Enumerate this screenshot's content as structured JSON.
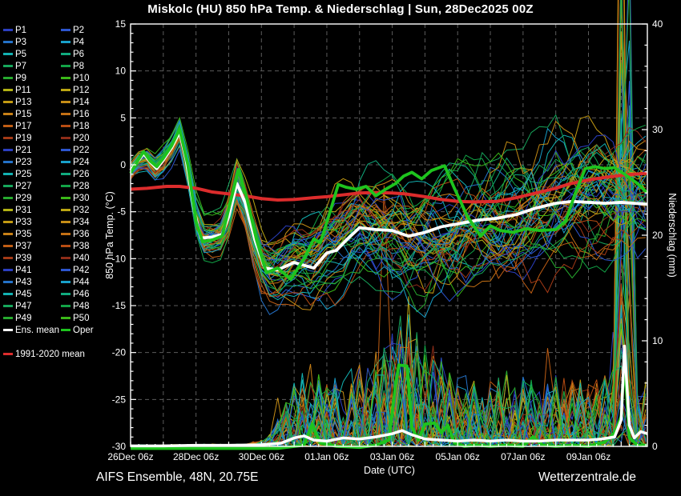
{
  "title": "Miskolc  (HU)  850 hPa Temp. & Niederschlag | Sun, 28Dec2025 00Z",
  "footer": {
    "left": "AIFS Ensemble, 48N, 20.75E",
    "right": "Wetterzentrale.de"
  },
  "legend": {
    "member_labels": [
      "P1",
      "P2",
      "P3",
      "P4",
      "P5",
      "P6",
      "P7",
      "P8",
      "P9",
      "P10",
      "P11",
      "P12",
      "P13",
      "P14",
      "P15",
      "P16",
      "P17",
      "P18",
      "P19",
      "P20",
      "P21",
      "P22",
      "P23",
      "P24",
      "P25",
      "P26",
      "P27",
      "P28",
      "P29",
      "P30",
      "P31",
      "P32",
      "P33",
      "P34",
      "P35",
      "P36",
      "P37",
      "P38",
      "P39",
      "P40",
      "P41",
      "P42",
      "P43",
      "P44",
      "P45",
      "P46",
      "P47",
      "P48",
      "P49",
      "P50"
    ],
    "member_palette": [
      "#2b3fc0",
      "#2c55cf",
      "#2472c9",
      "#18a0c9",
      "#12b2b2",
      "#10ab7e",
      "#16a75c",
      "#12a346",
      "#27aa2e",
      "#3ab818",
      "#b2b214",
      "#bba612",
      "#c39a12",
      "#c58d16",
      "#c88016",
      "#c47014",
      "#c05e14",
      "#b64c12",
      "#a43a16",
      "#8e2c18"
    ],
    "ens_mean": {
      "label": "Ens. mean",
      "color": "#ffffff"
    },
    "oper": {
      "label": "Oper",
      "color": "#1ec41e"
    },
    "climate": {
      "label": "1991-2020 mean",
      "color": "#dc2c2c"
    }
  },
  "chart_data": {
    "type": "line",
    "title": "Miskolc (HU) 850 hPa Temp. & Niederschlag, AIFS Ensemble run Sun 28Dec2025 00Z",
    "n_members": 50,
    "x_axis": {
      "label": "Date (UTC)",
      "start": "26Dec 06z",
      "span_days": 15.8,
      "tick_labels": [
        "26Dec 06z",
        "28Dec 06z",
        "30Dec 06z",
        "01Jan 06z",
        "03Jan 06z",
        "05Jan 06z",
        "07Jan 06z",
        "09Jan 06z"
      ],
      "tick_positions_days": [
        0,
        2,
        4,
        6,
        8,
        10,
        12,
        14
      ],
      "gridline_every_days": 1,
      "minor_tick_hours": 6
    },
    "y_left": {
      "label": "850 hPa Temp. (°C)",
      "min": -30,
      "max": 15,
      "major_ticks": [
        15,
        10,
        5,
        0,
        -5,
        -10,
        -15,
        -20,
        -25,
        -30
      ],
      "minor_step": 1,
      "grid_step": 5
    },
    "y_right": {
      "label": "Niederschlag (mm)",
      "min": 0,
      "max": 40,
      "major_ticks": [
        40,
        30,
        20,
        10,
        0
      ],
      "minor_step": 2
    },
    "series": {
      "ens_mean_temp": {
        "t": [
          0,
          0.25,
          0.4,
          0.6,
          0.8,
          1.0,
          1.25,
          1.5,
          1.7,
          1.95,
          2.15,
          2.5,
          2.8,
          3.0,
          3.25,
          3.5,
          3.8,
          4.1,
          4.5,
          5.0,
          5.6,
          6.0,
          6.3,
          6.6,
          7.0,
          7.5,
          8.0,
          8.5,
          9.0,
          9.5,
          10.0,
          10.6,
          11.2,
          11.8,
          12.4,
          13.0,
          13.5,
          14.0,
          14.5,
          15.0,
          15.4,
          15.8
        ],
        "v": [
          -0.6,
          0.5,
          1.2,
          0.3,
          -0.4,
          0.5,
          1.8,
          3.5,
          0.5,
          -5.0,
          -7.8,
          -7.7,
          -7.4,
          -5.5,
          -2.0,
          -4.0,
          -8.0,
          -11.0,
          -11.2,
          -10.4,
          -11.0,
          -9.4,
          -9.1,
          -8.0,
          -6.7,
          -6.9,
          -7.0,
          -7.6,
          -7.2,
          -6.6,
          -6.3,
          -5.9,
          -5.7,
          -5.3,
          -4.6,
          -4.1,
          -3.9,
          -4.0,
          -4.1,
          -4.0,
          -4.1,
          -4.2
        ]
      },
      "oper_temp": {
        "t": [
          0,
          0.25,
          0.4,
          0.6,
          0.8,
          1.0,
          1.25,
          1.5,
          1.75,
          2.0,
          2.2,
          2.5,
          2.8,
          3.05,
          3.3,
          3.55,
          3.85,
          4.15,
          4.5,
          4.9,
          5.3,
          5.6,
          5.8,
          6.1,
          6.35,
          6.6,
          6.9,
          7.2,
          7.5,
          7.8,
          8.1,
          8.35,
          8.6,
          8.9,
          9.2,
          9.6,
          9.9,
          10.3,
          10.7,
          11.0,
          11.3,
          11.7,
          12.1,
          12.5,
          13.0,
          13.3,
          13.6,
          13.9,
          14.2,
          14.5,
          14.8,
          15.1,
          15.5,
          15.8
        ],
        "v": [
          -0.9,
          0.6,
          1.4,
          0.4,
          -0.2,
          0.7,
          2.0,
          3.8,
          0.0,
          -6.0,
          -8.2,
          -8.0,
          -7.6,
          -4.0,
          -0.5,
          -3.5,
          -8.0,
          -11.5,
          -11.0,
          -12.2,
          -10.0,
          -7.9,
          -8.3,
          -5.0,
          -2.1,
          -2.4,
          -2.6,
          -2.3,
          -3.3,
          -2.6,
          -2.0,
          -1.2,
          -0.8,
          -1.5,
          -0.6,
          -0.1,
          -2.5,
          -5.5,
          -7.6,
          -6.5,
          -7.0,
          -7.2,
          -6.8,
          -7.0,
          -6.9,
          -6.0,
          -3.0,
          -0.4,
          -0.2,
          -0.4,
          -0.3,
          -1.0,
          -2.0,
          -3.0
        ]
      },
      "climate_mean_temp": {
        "t": [
          0,
          0.5,
          1.1,
          1.5,
          2.0,
          2.5,
          3.0,
          3.5,
          4.0,
          4.5,
          5.0,
          5.6,
          6.0,
          6.5,
          7.0,
          7.5,
          8.0,
          8.4,
          9.0,
          9.5,
          10.0,
          10.5,
          11.2,
          11.8,
          12.4,
          13.0,
          13.4,
          14.0,
          14.6,
          15.2,
          15.8
        ],
        "v": [
          -2.6,
          -2.5,
          -2.3,
          -2.3,
          -2.5,
          -2.9,
          -3.1,
          -3.3,
          -3.6,
          -3.75,
          -3.7,
          -3.5,
          -3.4,
          -3.2,
          -3.0,
          -2.95,
          -3.0,
          -3.1,
          -3.4,
          -3.7,
          -3.9,
          -3.95,
          -3.9,
          -3.5,
          -3.0,
          -2.5,
          -2.05,
          -1.6,
          -1.3,
          -1.05,
          -0.9
        ]
      },
      "ens_mean_precip": {
        "t": [
          0,
          1,
          2,
          3,
          4,
          4.6,
          5.0,
          5.3,
          5.6,
          6,
          6.5,
          7,
          7.5,
          8,
          8.3,
          8.6,
          9,
          9.5,
          10,
          10.5,
          11,
          11.5,
          12,
          12.5,
          13,
          13.5,
          14,
          14.4,
          14.8,
          15.0,
          15.1,
          15.25,
          15.4,
          15.6,
          15.8
        ],
        "v": [
          0.05,
          0.05,
          0.1,
          0.1,
          0.15,
          0.3,
          0.8,
          1.0,
          0.6,
          0.5,
          0.8,
          0.7,
          0.9,
          1.2,
          1.5,
          1.1,
          0.7,
          0.6,
          0.5,
          0.6,
          0.5,
          0.6,
          0.5,
          0.5,
          0.6,
          0.6,
          0.6,
          0.7,
          0.9,
          2.5,
          9.5,
          2.0,
          0.8,
          1.4,
          1.2
        ]
      },
      "oper_precip": {
        "t": [
          0,
          4.5,
          5.3,
          5.55,
          5.8,
          6.3,
          7.0,
          7.5,
          7.9,
          8.1,
          8.2,
          8.45,
          8.6,
          8.8,
          9.0,
          9.3,
          9.5,
          9.7,
          9.9,
          10.2,
          10.6,
          11,
          11.5,
          12,
          12.3,
          12.6,
          13,
          13.5,
          14,
          14.5,
          14.8,
          15.0,
          15.1,
          15.25,
          15.5,
          15.8
        ],
        "v": [
          0,
          0,
          0.3,
          2.3,
          0.5,
          0.2,
          0.1,
          0.3,
          0.8,
          6.0,
          7.9,
          7.8,
          2.0,
          0.8,
          2.3,
          2.4,
          1.5,
          2.2,
          0.5,
          0.2,
          0.3,
          0.2,
          0.3,
          0.2,
          1.1,
          0.3,
          0.2,
          0.3,
          0.2,
          0.6,
          1.5,
          3.0,
          8.5,
          1.0,
          0.3,
          0.3
        ]
      },
      "member_spread_temp": {
        "t": [
          0,
          0.5,
          1,
          1.5,
          2,
          2.5,
          3,
          3.5,
          4,
          4.5,
          5,
          5.5,
          6,
          6.5,
          7,
          7.5,
          8,
          8.5,
          9,
          9.5,
          10,
          11,
          12,
          13,
          14,
          15,
          15.8
        ],
        "v": [
          0.7,
          0.9,
          1.1,
          1.3,
          1.8,
          1.9,
          2.2,
          2.6,
          2.9,
          3.1,
          3.3,
          3.5,
          3.8,
          4.0,
          4.2,
          4.4,
          4.6,
          4.8,
          5.0,
          5.1,
          5.2,
          5.3,
          5.4,
          5.4,
          5.5,
          5.5,
          5.5
        ]
      },
      "member_precip_amplitude": {
        "t": [
          0,
          3.5,
          4.2,
          4.6,
          5,
          5.5,
          6,
          6.5,
          7,
          7.5,
          8,
          8.3,
          8.7,
          9,
          9.5,
          10,
          10.5,
          11,
          11.5,
          12,
          12.5,
          13,
          13.5,
          14,
          14.5,
          15,
          15.3,
          15.8
        ],
        "v": [
          0.06,
          0.08,
          0.3,
          1.2,
          2.2,
          2.8,
          2.2,
          2.4,
          2.8,
          3.2,
          4.2,
          4.8,
          4.2,
          3.6,
          3.2,
          2.6,
          2.3,
          2.4,
          2.6,
          2.4,
          2.2,
          2.4,
          2.3,
          2.2,
          2.4,
          2.8,
          2.4,
          2.2
        ]
      },
      "precip_spike_t_days": 15.1
    },
    "colors": {
      "background": "#000000",
      "grid": "#5c5c5c",
      "spine": "#ffffff",
      "ens_mean": "#ffffff",
      "oper": "#1ec41e",
      "climate": "#dc2c2c"
    }
  }
}
